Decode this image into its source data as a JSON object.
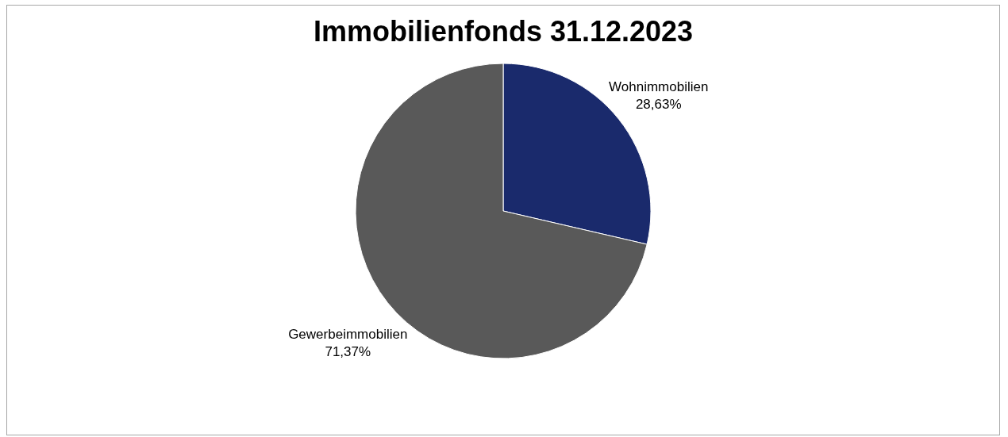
{
  "chart_data": {
    "type": "pie",
    "title": "Immobilienfonds 31.12.2023",
    "categories": [
      "Wohnimmobilien",
      "Gewerbeimmobilien"
    ],
    "values": [
      28.63,
      71.37
    ],
    "colors": [
      "#1a2a6c",
      "#595959"
    ],
    "value_labels": [
      "28,63%",
      "71,37%"
    ],
    "legend": false
  }
}
